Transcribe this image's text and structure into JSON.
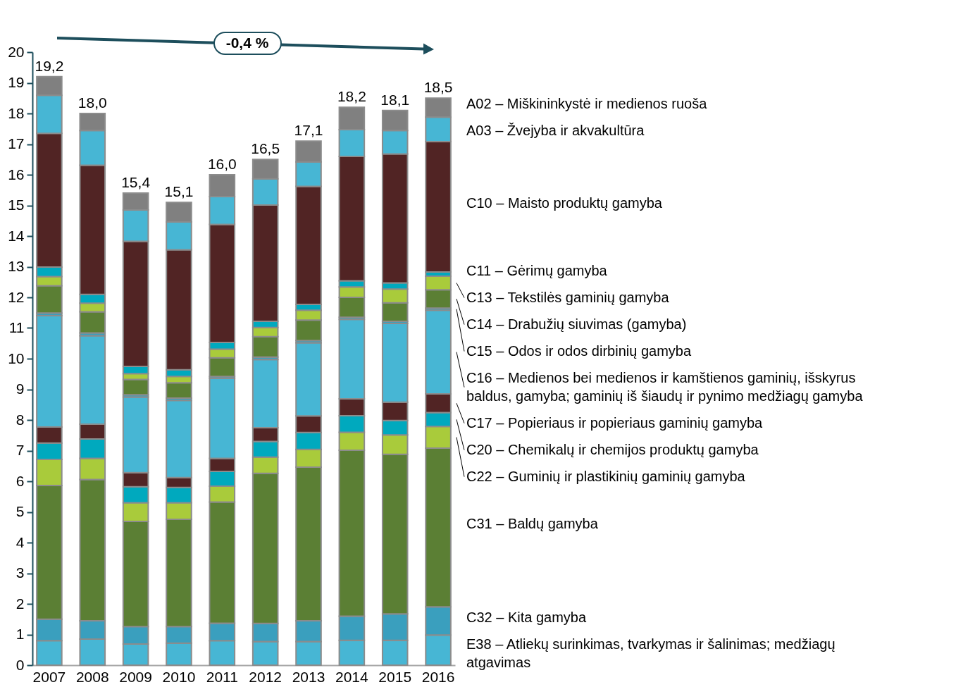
{
  "chart_data": {
    "type": "bar",
    "stacked": true,
    "categories": [
      "2007",
      "2008",
      "2009",
      "2010",
      "2011",
      "2012",
      "2013",
      "2014",
      "2015",
      "2016"
    ],
    "ylim": [
      0,
      20
    ],
    "yticks": [
      0,
      1,
      2,
      3,
      4,
      5,
      6,
      7,
      8,
      9,
      10,
      11,
      12,
      13,
      14,
      15,
      16,
      17,
      18,
      19,
      20
    ],
    "grid": false,
    "legend": "right",
    "totals": [
      "19,2",
      "18,0",
      "15,4",
      "15,1",
      "16,0",
      "16,5",
      "17,1",
      "18,2",
      "18,1",
      "18,5"
    ],
    "annotations": [
      "-0,4 %"
    ],
    "series": [
      {
        "name": "E38 – Atliekų surinkimas, tvarkymas ir šalinimas; medžiagų atgavimas",
        "color": "#47b6d4",
        "values": [
          0.8,
          0.85,
          0.69,
          0.72,
          0.8,
          0.77,
          0.77,
          0.81,
          0.81,
          0.98
        ]
      },
      {
        "name": "C32 – Kita gamyba",
        "color": "#3a9fbe",
        "values": [
          0.7,
          0.6,
          0.57,
          0.54,
          0.57,
          0.59,
          0.68,
          0.79,
          0.86,
          0.92
        ]
      },
      {
        "name": "C31 – Baldų gamyba",
        "color": "#5b7f34",
        "values": [
          4.36,
          4.61,
          3.43,
          3.5,
          3.95,
          4.9,
          5.01,
          5.41,
          5.21,
          5.18
        ]
      },
      {
        "name": "C22 – Guminių ir plastikinių gaminių gamyba",
        "color": "#a9cb3b",
        "values": [
          0.85,
          0.69,
          0.61,
          0.54,
          0.52,
          0.53,
          0.58,
          0.59,
          0.63,
          0.71
        ]
      },
      {
        "name": "C20 – Chemikalų ir chemijos produktų gamyba",
        "color": "#00a9be",
        "values": [
          0.54,
          0.63,
          0.52,
          0.5,
          0.48,
          0.51,
          0.55,
          0.54,
          0.47,
          0.45
        ]
      },
      {
        "name": "C17 – Popieriaus ir popieriaus gaminių gamyba",
        "color": "#512424",
        "values": [
          0.52,
          0.48,
          0.46,
          0.32,
          0.43,
          0.45,
          0.54,
          0.55,
          0.6,
          0.61
        ]
      },
      {
        "name": "C16 – Medienos bei medienos ir kamštienos gaminių, išskyrus baldus, gamyba; gaminių iš šiaudų ir pynimo medžiagų gamyba",
        "color": "#47b6d4",
        "values": [
          3.63,
          2.89,
          2.47,
          2.52,
          2.61,
          2.22,
          2.39,
          2.59,
          2.57,
          2.73
        ]
      },
      {
        "name": "C15 – Odos ir odos dirbinių gamyba",
        "color": "#3a9fbe",
        "values": [
          0.09,
          0.09,
          0.07,
          0.07,
          0.06,
          0.08,
          0.07,
          0.07,
          0.07,
          0.07
        ]
      },
      {
        "name": "C14 – Drabužių siuvimas (gamyba)",
        "color": "#5b7f34",
        "values": [
          0.89,
          0.69,
          0.5,
          0.5,
          0.61,
          0.67,
          0.67,
          0.65,
          0.6,
          0.6
        ]
      },
      {
        "name": "C13 – Tekstilės gaminių gamyba",
        "color": "#a9cb3b",
        "values": [
          0.3,
          0.28,
          0.19,
          0.21,
          0.28,
          0.3,
          0.32,
          0.34,
          0.45,
          0.44
        ]
      },
      {
        "name": "C11 – Gėrimų gamyba",
        "color": "#00a9be",
        "values": [
          0.31,
          0.29,
          0.24,
          0.22,
          0.22,
          0.2,
          0.19,
          0.2,
          0.2,
          0.14
        ]
      },
      {
        "name": "C10 – Maisto produktų gamyba",
        "color": "#512424",
        "values": [
          4.36,
          4.21,
          4.08,
          3.91,
          3.85,
          3.79,
          3.85,
          4.06,
          4.21,
          4.25
        ]
      },
      {
        "name": "A03 – Žvejyba ir akvakultūra",
        "color": "#47b6d4",
        "values": [
          1.24,
          1.13,
          1.02,
          0.91,
          0.91,
          0.86,
          0.8,
          0.87,
          0.76,
          0.8
        ]
      },
      {
        "name": "A02 – Miškininkystė ir medienos ruoša",
        "color": "#808080",
        "values": [
          0.61,
          0.56,
          0.55,
          0.64,
          0.71,
          0.63,
          0.68,
          0.73,
          0.66,
          0.62
        ]
      }
    ]
  }
}
